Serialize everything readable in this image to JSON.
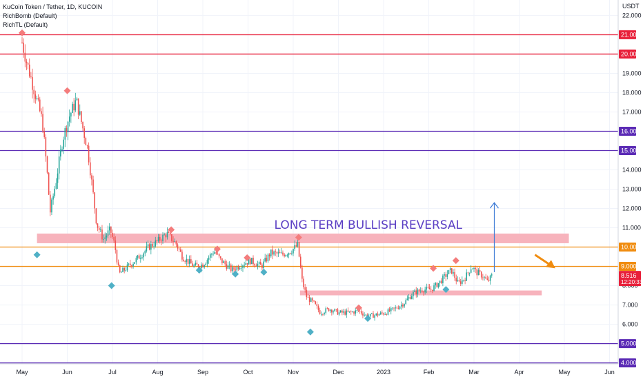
{
  "legend": {
    "title": "KuCoin Token / Tether, 1D, KUCOIN",
    "line2": "RichBomb (Default)",
    "line3": "RichTL (Default)"
  },
  "chart_data": {
    "type": "candlestick",
    "currency": "USDT",
    "ylim": [
      3.95,
      22.8
    ],
    "y_ticks": [
      4,
      5,
      6,
      7,
      8,
      9,
      10,
      11,
      12,
      13,
      14,
      15,
      16,
      17,
      18,
      19,
      20,
      21,
      22
    ],
    "x_ticks": [
      "May",
      "Jun",
      "Jul",
      "Aug",
      "Sep",
      "Oct",
      "Nov",
      "Dec",
      "2023",
      "Feb",
      "Mar",
      "Apr",
      "May",
      "Jun"
    ],
    "horizontal_levels": [
      {
        "value": 21,
        "label": "21.000",
        "color": "#e8203a"
      },
      {
        "value": 20,
        "label": "20.000",
        "color": "#e8203a"
      },
      {
        "value": 16,
        "label": "16.000",
        "color": "#5b2bb5"
      },
      {
        "value": 15,
        "label": "15.000",
        "color": "#5b2bb5"
      },
      {
        "value": 10,
        "label": "10.000",
        "color": "#f08c0f"
      },
      {
        "value": 9,
        "label": "9.000",
        "color": "#f08c0f"
      },
      {
        "value": 5,
        "label": "5.000",
        "color": "#5b2bb5"
      },
      {
        "value": 4,
        "label": "4.000",
        "color": "#5b2bb5"
      }
    ],
    "last_price": {
      "value": 8.516,
      "label": "8.516",
      "countdown": "12:20:33",
      "color": "#e8203a"
    },
    "zones": [
      {
        "from": 10.2,
        "to": 10.7,
        "start_month": 0.33,
        "end_month": 12.1,
        "color": "#f7b3bc"
      },
      {
        "from": 7.5,
        "to": 7.75,
        "start_month": 6.15,
        "end_month": 11.5,
        "color": "#f7b3bc"
      }
    ],
    "annotation": {
      "text": "LONG TERM BULLISH REVERSAL",
      "color": "#5b3fc4"
    },
    "arrow_up": {
      "from": 8.7,
      "to": 12.3,
      "month": 10.45,
      "color": "#3d7bd6"
    },
    "arrow_forecast": {
      "from_month": 11.35,
      "from_value": 9.6,
      "to_month": 11.8,
      "to_value": 8.9,
      "color": "#f08c0f"
    },
    "series": [
      {
        "month": 0.0,
        "close": 20.6
      },
      {
        "month": 0.1,
        "close": 19.6
      },
      {
        "month": 0.25,
        "close": 18.3
      },
      {
        "month": 0.45,
        "close": 16.5
      },
      {
        "month": 0.55,
        "close": 14.0
      },
      {
        "month": 0.62,
        "close": 11.8
      },
      {
        "month": 0.75,
        "close": 13.4
      },
      {
        "month": 0.9,
        "close": 15.6
      },
      {
        "month": 1.05,
        "close": 16.8
      },
      {
        "month": 1.2,
        "close": 17.6
      },
      {
        "month": 1.3,
        "close": 16.6
      },
      {
        "month": 1.45,
        "close": 15.1
      },
      {
        "month": 1.55,
        "close": 13.2
      },
      {
        "month": 1.65,
        "close": 11.2
      },
      {
        "month": 1.8,
        "close": 10.4
      },
      {
        "month": 1.95,
        "close": 10.9
      },
      {
        "month": 2.05,
        "close": 10.1
      },
      {
        "month": 2.15,
        "close": 8.6
      },
      {
        "month": 2.35,
        "close": 9.0
      },
      {
        "month": 2.55,
        "close": 9.4
      },
      {
        "month": 2.8,
        "close": 10.0
      },
      {
        "month": 3.0,
        "close": 10.3
      },
      {
        "month": 3.2,
        "close": 10.7
      },
      {
        "month": 3.4,
        "close": 10.2
      },
      {
        "month": 3.55,
        "close": 9.5
      },
      {
        "month": 3.8,
        "close": 9.0
      },
      {
        "month": 4.0,
        "close": 9.1
      },
      {
        "month": 4.25,
        "close": 9.8
      },
      {
        "month": 4.4,
        "close": 9.3
      },
      {
        "month": 4.65,
        "close": 8.8
      },
      {
        "month": 4.85,
        "close": 9.1
      },
      {
        "month": 5.05,
        "close": 9.3
      },
      {
        "month": 5.3,
        "close": 9.0
      },
      {
        "month": 5.5,
        "close": 9.7
      },
      {
        "month": 5.75,
        "close": 9.6
      },
      {
        "month": 5.95,
        "close": 9.8
      },
      {
        "month": 6.1,
        "close": 10.1
      },
      {
        "month": 6.2,
        "close": 8.2
      },
      {
        "month": 6.3,
        "close": 7.4
      },
      {
        "month": 6.45,
        "close": 7.1
      },
      {
        "month": 6.6,
        "close": 6.6
      },
      {
        "month": 6.8,
        "close": 6.8
      },
      {
        "month": 7.0,
        "close": 6.6
      },
      {
        "month": 7.25,
        "close": 6.6
      },
      {
        "month": 7.45,
        "close": 6.7
      },
      {
        "month": 7.65,
        "close": 6.4
      },
      {
        "month": 7.85,
        "close": 6.5
      },
      {
        "month": 8.05,
        "close": 6.6
      },
      {
        "month": 8.25,
        "close": 6.8
      },
      {
        "month": 8.45,
        "close": 7.1
      },
      {
        "month": 8.65,
        "close": 7.6
      },
      {
        "month": 8.85,
        "close": 7.8
      },
      {
        "month": 9.05,
        "close": 7.8
      },
      {
        "month": 9.25,
        "close": 8.2
      },
      {
        "month": 9.4,
        "close": 8.6
      },
      {
        "month": 9.5,
        "close": 8.8
      },
      {
        "month": 9.65,
        "close": 8.1
      },
      {
        "month": 9.8,
        "close": 8.4
      },
      {
        "month": 9.95,
        "close": 9.0
      },
      {
        "month": 10.05,
        "close": 8.7
      },
      {
        "month": 10.2,
        "close": 8.5
      },
      {
        "month": 10.3,
        "close": 8.2
      },
      {
        "month": 10.4,
        "close": 8.516
      }
    ],
    "markers": [
      {
        "type": "top",
        "month": 0.0,
        "value": 21.1
      },
      {
        "type": "bottom",
        "month": 0.33,
        "value": 9.6
      },
      {
        "type": "top",
        "month": 1.0,
        "value": 18.1
      },
      {
        "type": "bottom",
        "month": 1.98,
        "value": 8.0
      },
      {
        "type": "top",
        "month": 3.3,
        "value": 10.9
      },
      {
        "type": "bottom",
        "month": 3.92,
        "value": 8.8
      },
      {
        "type": "top",
        "month": 4.32,
        "value": 9.9
      },
      {
        "type": "bottom",
        "month": 4.72,
        "value": 8.6
      },
      {
        "type": "top",
        "month": 4.98,
        "value": 9.45
      },
      {
        "type": "bottom",
        "month": 5.35,
        "value": 8.7
      },
      {
        "type": "top",
        "month": 6.12,
        "value": 10.5
      },
      {
        "type": "bottom",
        "month": 6.38,
        "value": 5.6
      },
      {
        "type": "top",
        "month": 7.45,
        "value": 6.85
      },
      {
        "type": "bottom",
        "month": 7.65,
        "value": 6.3
      },
      {
        "type": "top",
        "month": 9.1,
        "value": 8.9
      },
      {
        "type": "bottom",
        "month": 9.38,
        "value": 7.8
      },
      {
        "type": "top",
        "month": 9.6,
        "value": 9.3
      }
    ]
  }
}
